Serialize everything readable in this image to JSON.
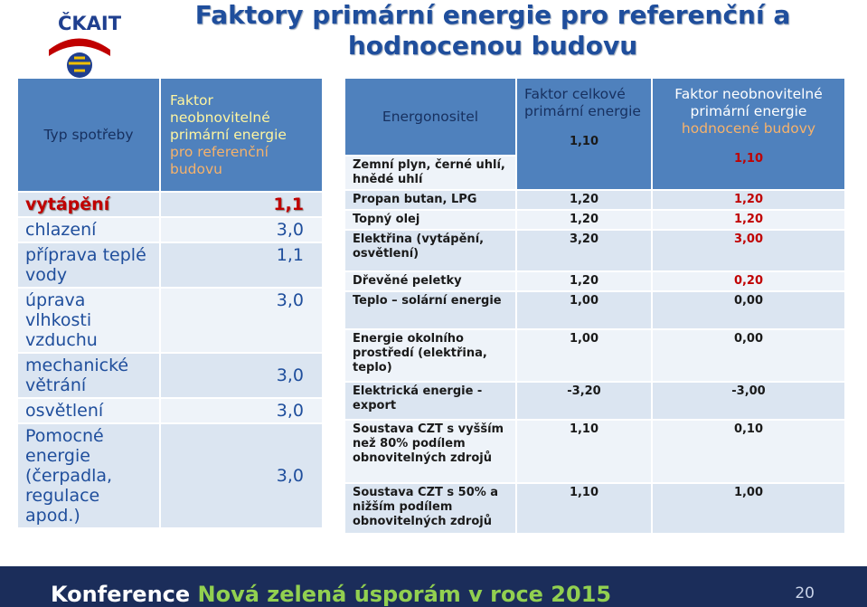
{
  "logo": {
    "text": "ČKAIT"
  },
  "title": "Faktory primární energie pro referenční a hodnocenou budovu",
  "left_table": {
    "header_col1": "Typ spotřeby",
    "header_col2_main": "Faktor neobnovitelné primární energie",
    "header_col2_rest": "pro referenční budovu",
    "rows": [
      {
        "label": "vytápění",
        "value": "1,1",
        "highlight": true
      },
      {
        "label": "chlazení",
        "value": "3,0"
      },
      {
        "label": "příprava teplé vody",
        "value": "1,1"
      },
      {
        "label": "úprava vlhkosti vzduchu",
        "value": "3,0"
      },
      {
        "label": "mechanické větrání",
        "value": "3,0"
      },
      {
        "label": "osvětlení",
        "value": "3,0"
      },
      {
        "label": "Pomocné energie (čerpadla, regulace apod.)",
        "value": "3,0"
      }
    ]
  },
  "right_table": {
    "header_col1": "Energonositel",
    "header_col2": "Faktor celkové primární energie",
    "header_col3_main": "Faktor neobnovitelné primární energie",
    "header_col3_rest": "hodnocené budovy",
    "rows": [
      {
        "carrier": "Zemní plyn, černé uhlí, hnědé uhlí",
        "total": "1,10",
        "nonrenewable": "1,10",
        "red": true
      },
      {
        "carrier": "Propan butan, LPG",
        "total": "1,20",
        "nonrenewable": "1,20",
        "red": true
      },
      {
        "carrier": "Topný olej",
        "total": "1,20",
        "nonrenewable": "1,20",
        "red": true
      },
      {
        "carrier": "Elektřina (vytápění, osvětlení)",
        "total": "3,20",
        "nonrenewable": "3,00",
        "red": true
      },
      {
        "carrier": "Dřevěné peletky",
        "total": "1,20",
        "nonrenewable": "0,20",
        "red": true
      },
      {
        "carrier": "Teplo – solární energie",
        "total": "1,00",
        "nonrenewable": "0,00"
      },
      {
        "carrier": "Energie okolního prostředí (elektřina, teplo)",
        "total": "1,00",
        "nonrenewable": "0,00"
      },
      {
        "carrier": "Elektrická energie - export",
        "total": "-3,20",
        "nonrenewable": "-3,00"
      },
      {
        "carrier": "Soustava CZT s vyšším než 80% podílem obnovitelných zdrojů",
        "total": "1,10",
        "nonrenewable": "0,10"
      },
      {
        "carrier": "Soustava CZT s 50% a nižším podílem obnovitelných zdrojů",
        "total": "1,10",
        "nonrenewable": "1,00"
      }
    ]
  },
  "footer": {
    "prefix": "Konference",
    "name": "Nová zelená úsporám v roce 2015",
    "page": "20"
  },
  "colors": {
    "header_bg": "#4f81bd",
    "accent_red": "#c00000",
    "footer_bg": "#1b2d5a",
    "green": "#92d050"
  }
}
